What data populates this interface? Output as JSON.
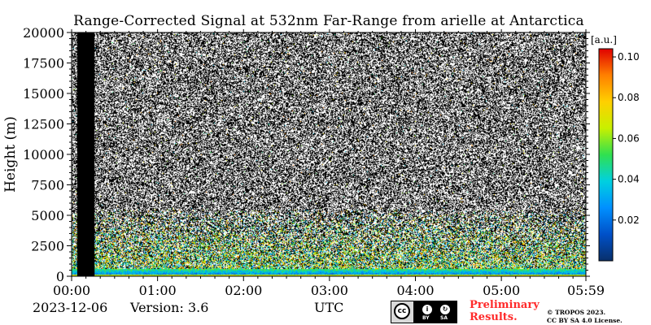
{
  "title": "Range-Corrected Signal at 532nm Far-Range from arielle at Antarctica",
  "footer": {
    "date": "2023-12-06",
    "version": "Version: 3.6",
    "utc_label": "UTC",
    "preliminary_line1": "Preliminary",
    "preliminary_line2": "Results.",
    "copyright_line1": "© TROPOS 2023.",
    "copyright_line2": "CC BY SA 4.0 License.",
    "license_badge": {
      "by": "BY",
      "sa": "SA"
    }
  },
  "colors": {
    "noise_dark": "#000000",
    "noise_light": "#ffffff",
    "colormap": [
      "#08306b",
      "#0050c8",
      "#0090ff",
      "#00d0e0",
      "#30e050",
      "#c8f000",
      "#ffd000",
      "#ff8000",
      "#e00000"
    ]
  },
  "chart_data": {
    "type": "heatmap",
    "title": "Range-Corrected Signal at 532nm Far-Range from arielle at Antarctica",
    "xlabel": "UTC",
    "ylabel": "Height (m)",
    "x_ticks": [
      "00:00",
      "01:00",
      "02:00",
      "03:00",
      "04:00",
      "05:00",
      "05:59"
    ],
    "x_range_minutes": [
      0,
      359
    ],
    "y_ticks": [
      0,
      2500,
      5000,
      7500,
      10000,
      12500,
      15000,
      17500,
      20000
    ],
    "y_range": [
      0,
      20000
    ],
    "colorbar": {
      "label": "[a.u.]",
      "ticks": [
        0.02,
        0.04,
        0.06,
        0.08,
        0.1
      ],
      "tick_labels": [
        "0.02",
        "0.04",
        "0.06",
        "0.08",
        "0.10"
      ],
      "range": [
        0.0,
        0.104
      ]
    },
    "no_data_intervals_minutes": [
      [
        4,
        16
      ]
    ],
    "strong_signal_layer_m": [
      0,
      600
    ],
    "aerosol_layer_m": [
      600,
      5500
    ]
  }
}
